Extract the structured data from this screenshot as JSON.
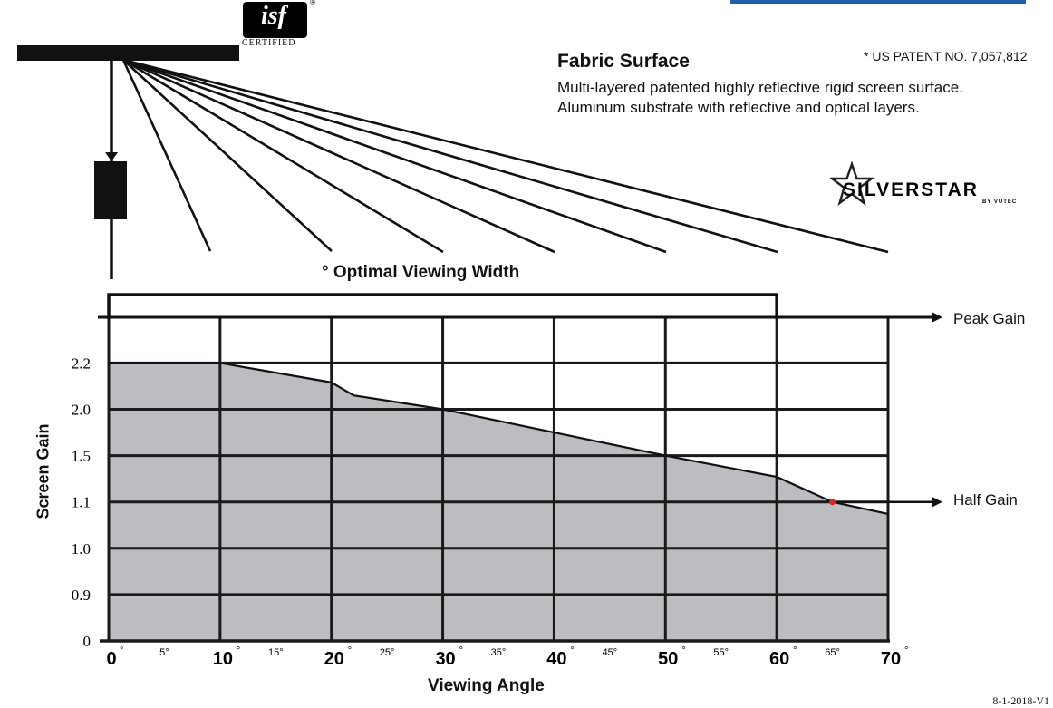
{
  "header": {
    "title": "Fabric Surface",
    "description_line1": "Multi-layered patented highly reflective rigid screen surface.",
    "description_line2": "Aluminum substrate with reflective and optical layers.",
    "patent": "* US PATENT NO. 7,057,812"
  },
  "logos": {
    "isf_mark": "isf",
    "isf_reg": "®",
    "isf_caption": "CERTIFIED",
    "brand_name": "SILVERSTAR",
    "brand_sub": "BY VUTEC"
  },
  "diagram": {
    "optimal_label": "° Optimal Viewing Width",
    "peak_label": "Peak Gain",
    "half_label": "Half Gain"
  },
  "version": "8-1-2018-V1",
  "colors": {
    "fill": "#bcbdc0",
    "grid": "#1a1a1a",
    "half_gain_marker": "#d62828",
    "accent_bar": "#1f5fa8"
  },
  "chart_data": {
    "type": "area",
    "xlabel": "Viewing Angle",
    "ylabel": "Screen Gain",
    "x_ticks": [
      "0",
      "10",
      "20",
      "30",
      "40",
      "50",
      "60",
      "70"
    ],
    "x_minor_ticks": [
      "5",
      "15",
      "25",
      "35",
      "45",
      "55",
      "65"
    ],
    "x_tick_suffix": "°",
    "y_ticks": [
      "0",
      "0.9",
      "1.0",
      "1.1",
      "1.5",
      "2.0",
      "2.2"
    ],
    "x": [
      0,
      10,
      20,
      22,
      30,
      40,
      50,
      60,
      65,
      70
    ],
    "y_tick_position": [
      0,
      1,
      2,
      3,
      4,
      5,
      6
    ],
    "series": [
      {
        "values": [
          6,
          6,
          5.58,
          5.3,
          5,
          4.5,
          4,
          3.54,
          3,
          2.74
        ]
      }
    ],
    "optimal_width_range": [
      0,
      60
    ],
    "half_gain_point": {
      "x": 65,
      "y": 1.1
    },
    "xlim": [
      0,
      70
    ],
    "grid": true,
    "legend": "none"
  }
}
